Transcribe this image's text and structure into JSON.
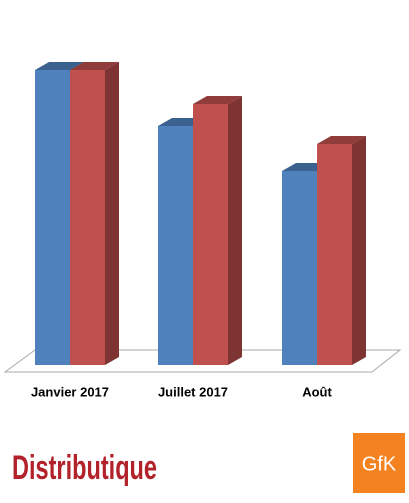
{
  "chart_data": {
    "type": "bar3d",
    "categories": [
      "Janvier 2017",
      "Juillet 2017",
      "Août"
    ],
    "series": [
      {
        "color": "#4f81bd",
        "values": [
          295,
          239,
          194
        ]
      },
      {
        "color": "#c0504d",
        "values": [
          295,
          261,
          221
        ]
      }
    ],
    "ylim": [
      0,
      300
    ]
  },
  "footer": {
    "logos": [
      "Distributique",
      "GfK"
    ]
  }
}
